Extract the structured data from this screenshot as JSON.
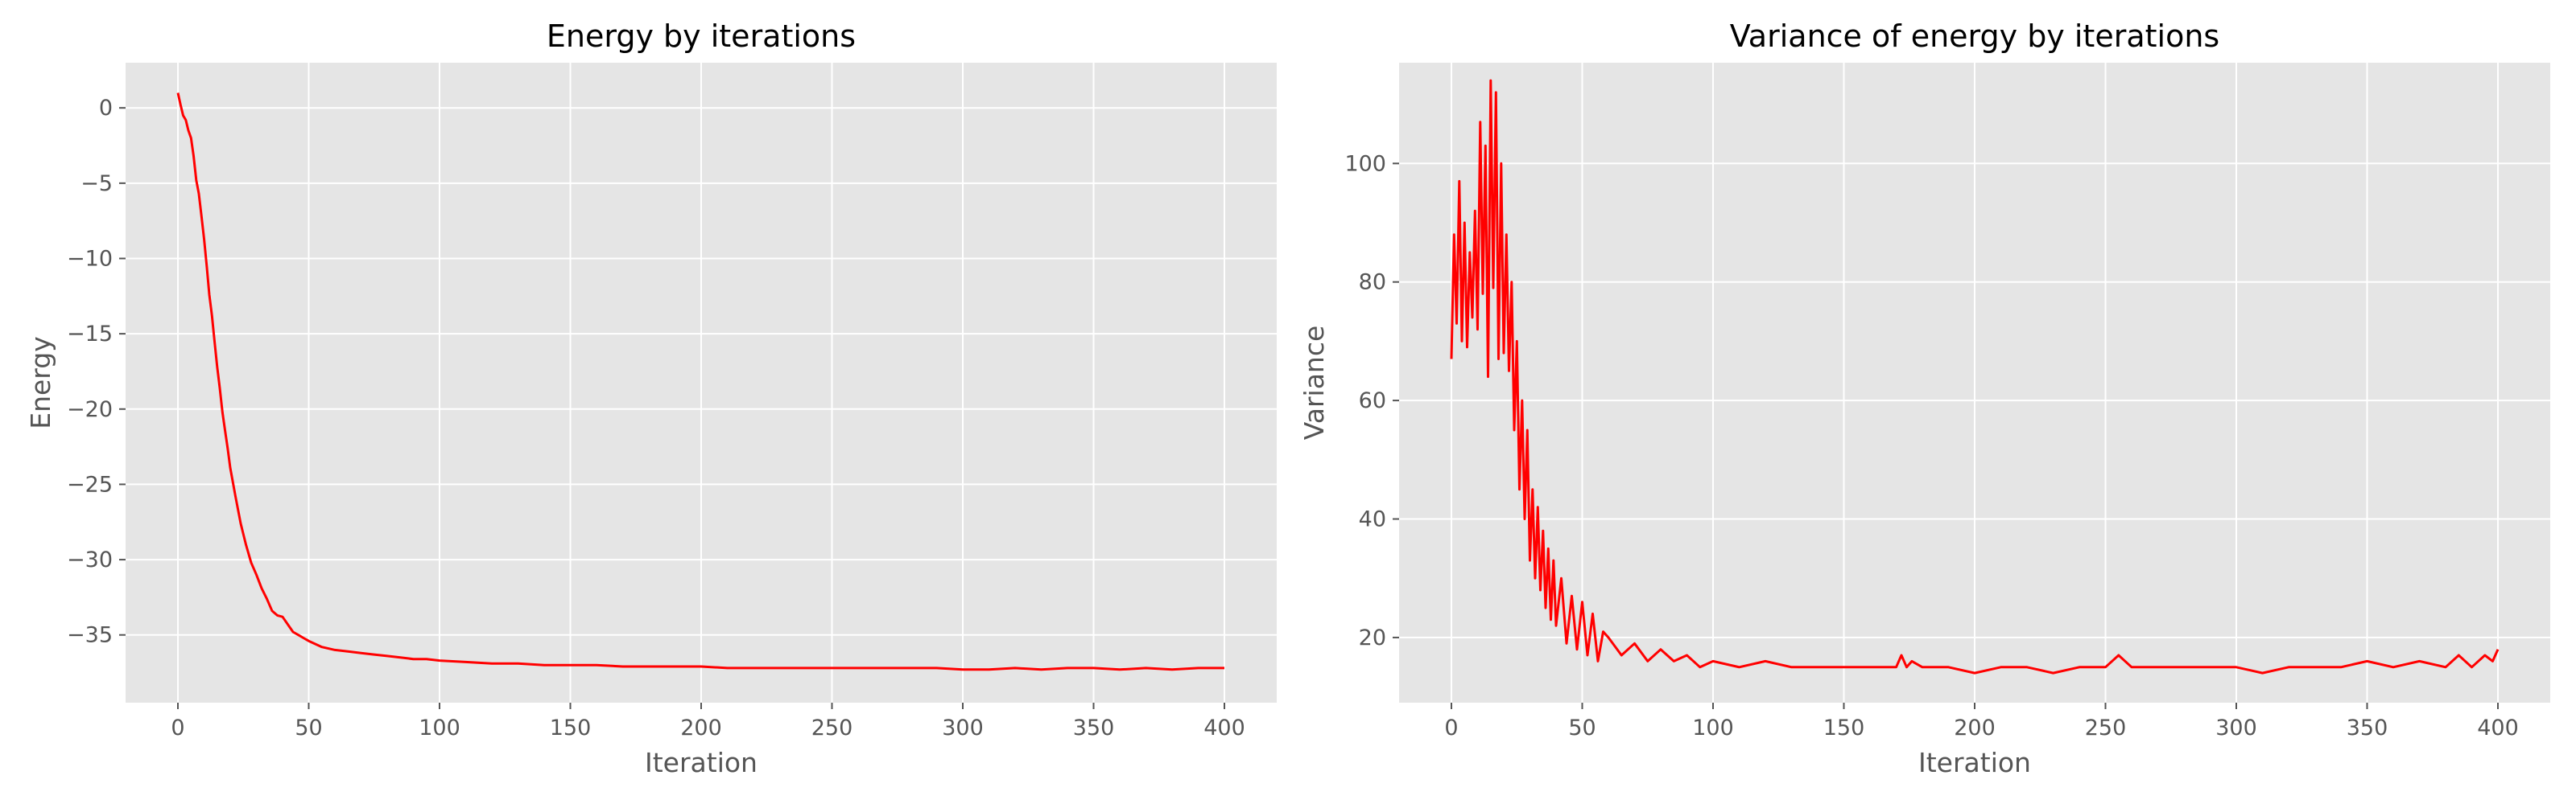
{
  "chart_data": [
    {
      "type": "line",
      "title": "Energy by iterations",
      "xlabel": "Iteration",
      "ylabel": "Energy",
      "xlim": [
        -20,
        420
      ],
      "ylim": [
        -39.5,
        3
      ],
      "xticks": [
        0,
        50,
        100,
        150,
        200,
        250,
        300,
        350,
        400
      ],
      "yticks": [
        0,
        -5,
        -10,
        -15,
        -20,
        -25,
        -30,
        -35
      ],
      "xtick_labels": [
        "0",
        "50",
        "100",
        "150",
        "200",
        "250",
        "300",
        "350",
        "400"
      ],
      "ytick_labels": [
        "0",
        "−5",
        "−10",
        "−15",
        "−20",
        "−25",
        "−30",
        "−35"
      ],
      "grid": true,
      "series": [
        {
          "color": "#ff0000",
          "x": [
            0,
            1,
            2,
            3,
            4,
            5,
            6,
            7,
            8,
            9,
            10,
            11,
            12,
            13,
            14,
            15,
            16,
            17,
            18,
            19,
            20,
            22,
            24,
            26,
            28,
            30,
            32,
            34,
            36,
            38,
            40,
            42,
            44,
            46,
            48,
            50,
            55,
            60,
            65,
            70,
            75,
            80,
            85,
            90,
            95,
            100,
            110,
            120,
            130,
            140,
            150,
            160,
            170,
            180,
            190,
            200,
            210,
            220,
            230,
            240,
            250,
            260,
            270,
            280,
            290,
            300,
            310,
            320,
            330,
            340,
            350,
            360,
            370,
            380,
            390,
            400
          ],
          "y": [
            1.0,
            0.2,
            -0.5,
            -0.8,
            -1.5,
            -2.0,
            -3.2,
            -4.8,
            -5.7,
            -7.2,
            -8.7,
            -10.5,
            -12.4,
            -13.8,
            -15.5,
            -17.2,
            -18.6,
            -20.2,
            -21.4,
            -22.6,
            -23.9,
            -25.8,
            -27.6,
            -29.0,
            -30.2,
            -31.0,
            -31.9,
            -32.6,
            -33.4,
            -33.7,
            -33.8,
            -34.3,
            -34.8,
            -35.0,
            -35.2,
            -35.4,
            -35.8,
            -36.0,
            -36.1,
            -36.2,
            -36.3,
            -36.4,
            -36.5,
            -36.6,
            -36.6,
            -36.7,
            -36.8,
            -36.9,
            -36.9,
            -37.0,
            -37.0,
            -37.0,
            -37.1,
            -37.1,
            -37.1,
            -37.1,
            -37.2,
            -37.2,
            -37.2,
            -37.2,
            -37.2,
            -37.2,
            -37.2,
            -37.2,
            -37.2,
            -37.3,
            -37.3,
            -37.2,
            -37.3,
            -37.2,
            -37.2,
            -37.3,
            -37.2,
            -37.3,
            -37.2,
            -37.2
          ]
        }
      ]
    },
    {
      "type": "line",
      "title": "Variance of energy by iterations",
      "xlabel": "Iteration",
      "ylabel": "Variance",
      "xlim": [
        -20,
        420
      ],
      "ylim": [
        9,
        117
      ],
      "xticks": [
        0,
        50,
        100,
        150,
        200,
        250,
        300,
        350,
        400
      ],
      "yticks": [
        20,
        40,
        60,
        80,
        100
      ],
      "xtick_labels": [
        "0",
        "50",
        "100",
        "150",
        "200",
        "250",
        "300",
        "350",
        "400"
      ],
      "ytick_labels": [
        "20",
        "40",
        "60",
        "80",
        "100"
      ],
      "grid": true,
      "series": [
        {
          "color": "#ff0000",
          "x": [
            0,
            1,
            2,
            3,
            4,
            5,
            6,
            7,
            8,
            9,
            10,
            11,
            12,
            13,
            14,
            15,
            16,
            17,
            18,
            19,
            20,
            21,
            22,
            23,
            24,
            25,
            26,
            27,
            28,
            29,
            30,
            31,
            32,
            33,
            34,
            35,
            36,
            37,
            38,
            39,
            40,
            42,
            44,
            46,
            48,
            50,
            52,
            54,
            56,
            58,
            60,
            65,
            70,
            75,
            80,
            85,
            90,
            95,
            100,
            110,
            120,
            130,
            140,
            150,
            160,
            170,
            172,
            174,
            176,
            180,
            190,
            200,
            210,
            220,
            230,
            240,
            250,
            255,
            260,
            270,
            280,
            290,
            300,
            310,
            320,
            330,
            340,
            350,
            360,
            370,
            380,
            385,
            390,
            395,
            398,
            400
          ],
          "y": [
            67,
            88,
            73,
            97,
            70,
            90,
            69,
            85,
            74,
            92,
            72,
            107,
            78,
            103,
            64,
            114,
            79,
            112,
            67,
            100,
            68,
            88,
            65,
            80,
            55,
            70,
            45,
            60,
            40,
            55,
            33,
            45,
            30,
            42,
            28,
            38,
            25,
            35,
            23,
            33,
            22,
            30,
            19,
            27,
            18,
            26,
            17,
            24,
            16,
            21,
            20,
            17,
            19,
            16,
            18,
            16,
            17,
            15,
            16,
            15,
            16,
            15,
            15,
            15,
            15,
            15,
            17,
            15,
            16,
            15,
            15,
            14,
            15,
            15,
            14,
            15,
            15,
            17,
            15,
            15,
            15,
            15,
            15,
            14,
            15,
            15,
            15,
            16,
            15,
            16,
            15,
            17,
            15,
            17,
            16,
            18
          ]
        }
      ]
    }
  ]
}
